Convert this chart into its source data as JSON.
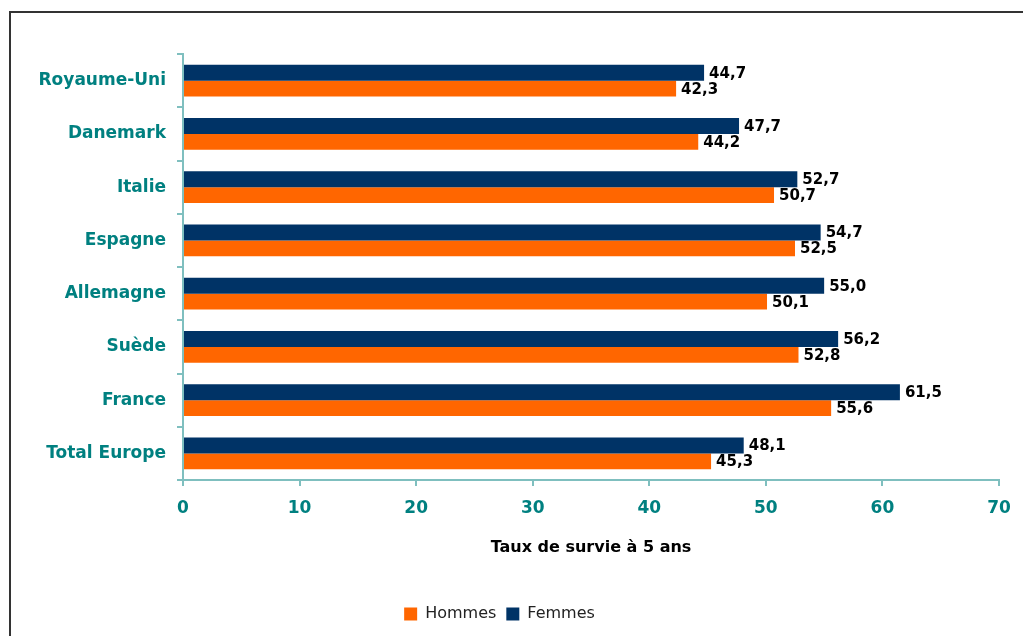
{
  "chart_data": {
    "type": "bar",
    "orientation": "horizontal",
    "categories": [
      "Royaume-Uni",
      "Danemark",
      "Italie",
      "Espagne",
      "Allemagne",
      "Suède",
      "France",
      "Total Europe"
    ],
    "series": [
      {
        "name": "Hommes",
        "color": "#ff6600",
        "values": [
          42.3,
          44.2,
          50.7,
          52.5,
          50.1,
          52.8,
          55.6,
          45.3
        ],
        "value_labels": [
          "42,3",
          "44,2",
          "50,7",
          "52,5",
          "50,1",
          "52,8",
          "55,6",
          "45,3"
        ]
      },
      {
        "name": "Femmes",
        "color": "#003366",
        "values": [
          44.7,
          47.7,
          52.7,
          54.7,
          55.0,
          56.2,
          61.5,
          48.1
        ],
        "value_labels": [
          "44,7",
          "47,7",
          "52,7",
          "54,7",
          "55,0",
          "56,2",
          "61,5",
          "48,1"
        ]
      }
    ],
    "xlabel": "Taux de survie à 5 ans",
    "xlim": [
      0,
      70
    ],
    "xticks": [
      0,
      10,
      20,
      30,
      40,
      50,
      60,
      70
    ],
    "legend": "bottom",
    "grid": false
  }
}
